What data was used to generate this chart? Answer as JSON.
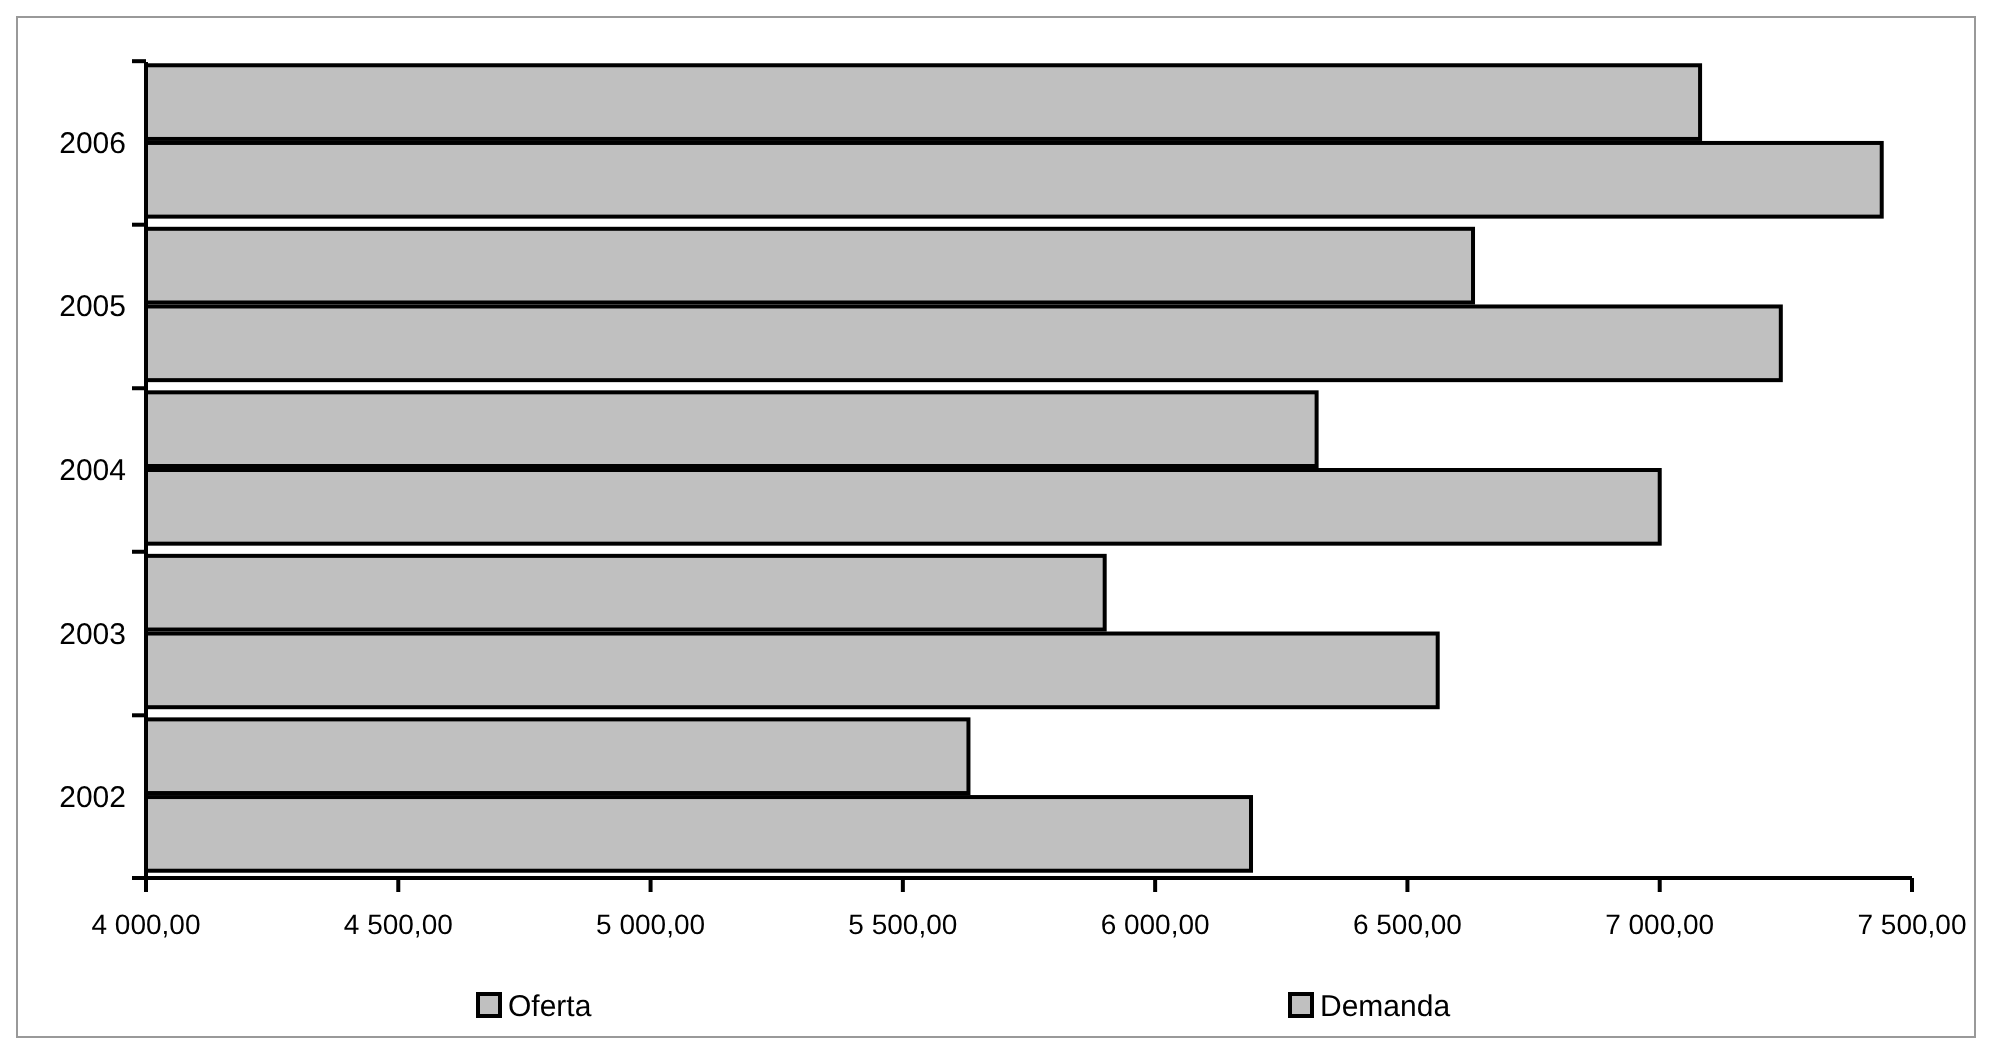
{
  "chart_data": {
    "type": "bar",
    "orientation": "horizontal",
    "categories": [
      "2006",
      "2005",
      "2004",
      "2003",
      "2002"
    ],
    "series": [
      {
        "name": "Oferta",
        "color": "#c0c0c0",
        "values": [
          7440,
          7240,
          7000,
          6560,
          6190
        ]
      },
      {
        "name": "Demanda",
        "color": "#c0c0c0",
        "values": [
          7080,
          6630,
          6320,
          5900,
          5630
        ]
      }
    ],
    "xlim": [
      4000,
      7500
    ],
    "xticks": [
      {
        "value": 4000,
        "label": "4 000,00"
      },
      {
        "value": 4500,
        "label": "4 500,00"
      },
      {
        "value": 5000,
        "label": "5 000,00"
      },
      {
        "value": 5500,
        "label": "5 500,00"
      },
      {
        "value": 6000,
        "label": "6 000,00"
      },
      {
        "value": 6500,
        "label": "6 500,00"
      },
      {
        "value": 7000,
        "label": "7 000,00"
      },
      {
        "value": 7500,
        "label": "7 500,00"
      }
    ],
    "grid": false,
    "legend": "bottom"
  }
}
